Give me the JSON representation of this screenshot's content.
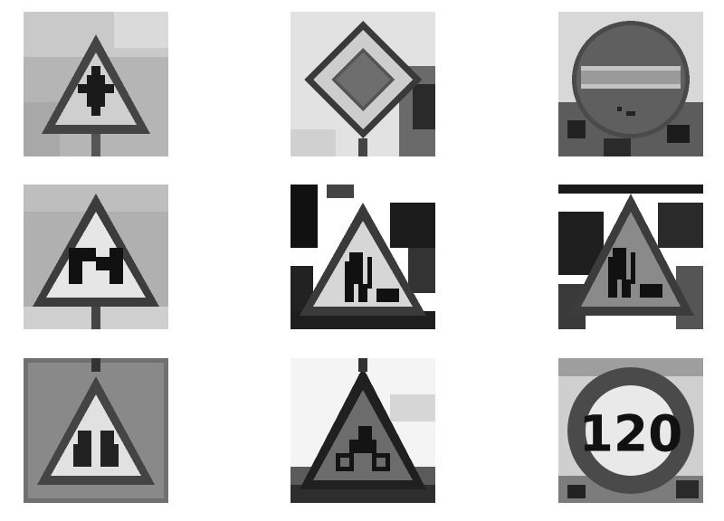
{
  "images": [
    {
      "id": "sign-1",
      "subject": "crossroad-warning-triangle",
      "icon": "crossroad-icon"
    },
    {
      "id": "sign-2",
      "subject": "priority-road-diamond",
      "icon": "priority-diamond-icon"
    },
    {
      "id": "sign-3",
      "subject": "no-entry-circle",
      "icon": "no-entry-icon"
    },
    {
      "id": "sign-4",
      "subject": "double-curve-warning-triangle",
      "icon": "double-curve-icon"
    },
    {
      "id": "sign-5",
      "subject": "road-work-warning-triangle",
      "icon": "road-work-icon"
    },
    {
      "id": "sign-6",
      "subject": "road-work-warning-triangle",
      "icon": "road-work-icon"
    },
    {
      "id": "sign-7",
      "subject": "children-crossing-warning-triangle",
      "icon": "children-crossing-icon"
    },
    {
      "id": "sign-8",
      "subject": "bicycles-crossing-warning-triangle",
      "icon": "bicycle-icon"
    },
    {
      "id": "sign-9",
      "subject": "speed-limit-circle",
      "icon": "speed-limit-icon",
      "text": "120"
    }
  ],
  "colors": {
    "sign_border": "#3c3c3c",
    "sign_fill": "#d8d8d8",
    "symbol": "#141414",
    "sky": "#c4c4c4"
  }
}
